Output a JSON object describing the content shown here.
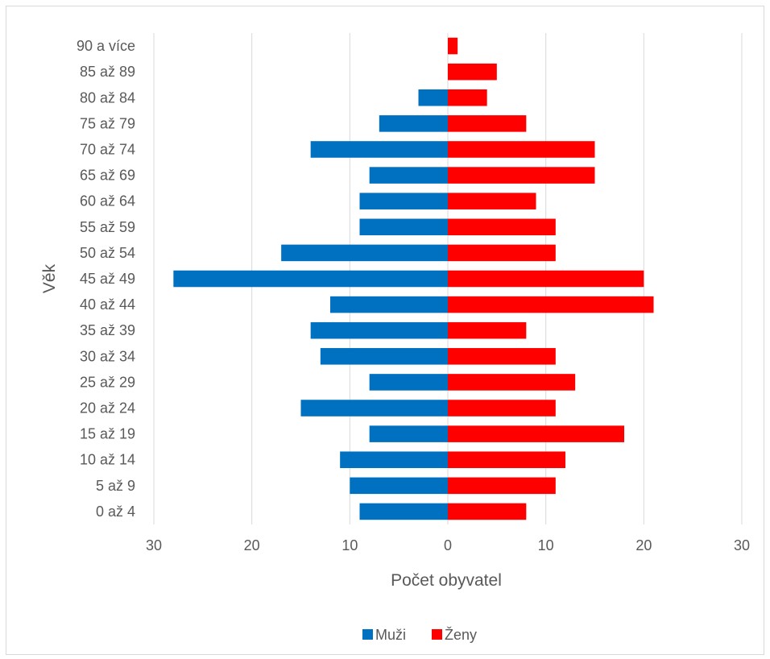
{
  "chart_data": {
    "type": "bar",
    "orientation": "horizontal",
    "layout": "population-pyramid",
    "categories": [
      "0 až 4",
      "5 až 9",
      "10 až 14",
      "15 až 19",
      "20 až 24",
      "25 až 29",
      "30 až 34",
      "35 až 39",
      "40 až 44",
      "45 až 49",
      "50 až 54",
      "55 až 59",
      "60 až 64",
      "65 až 69",
      "70 až 74",
      "75 až 79",
      "80 až 84",
      "85 až 89",
      "90 a více"
    ],
    "series": [
      {
        "name": "Muži",
        "color": "#0070c0",
        "values": [
          -9,
          -10,
          -11,
          -8,
          -15,
          -8,
          -13,
          -14,
          -12,
          -28,
          -17,
          -9,
          -9,
          -8,
          -14,
          -7,
          -3,
          0,
          0
        ]
      },
      {
        "name": "Ženy",
        "color": "#ff0000",
        "values": [
          8,
          11,
          12,
          18,
          11,
          13,
          11,
          8,
          21,
          20,
          11,
          11,
          9,
          15,
          15,
          8,
          4,
          5,
          1
        ]
      }
    ],
    "xlabel": "Počet obyvatel",
    "ylabel": "Věk",
    "xlim": [
      -30,
      30
    ],
    "x_ticks": [
      -30,
      -20,
      -10,
      0,
      10,
      20,
      30
    ],
    "x_tick_labels": [
      "30",
      "20",
      "10",
      "0",
      "10",
      "20",
      "30"
    ],
    "grid": true,
    "legend_position": "bottom"
  }
}
